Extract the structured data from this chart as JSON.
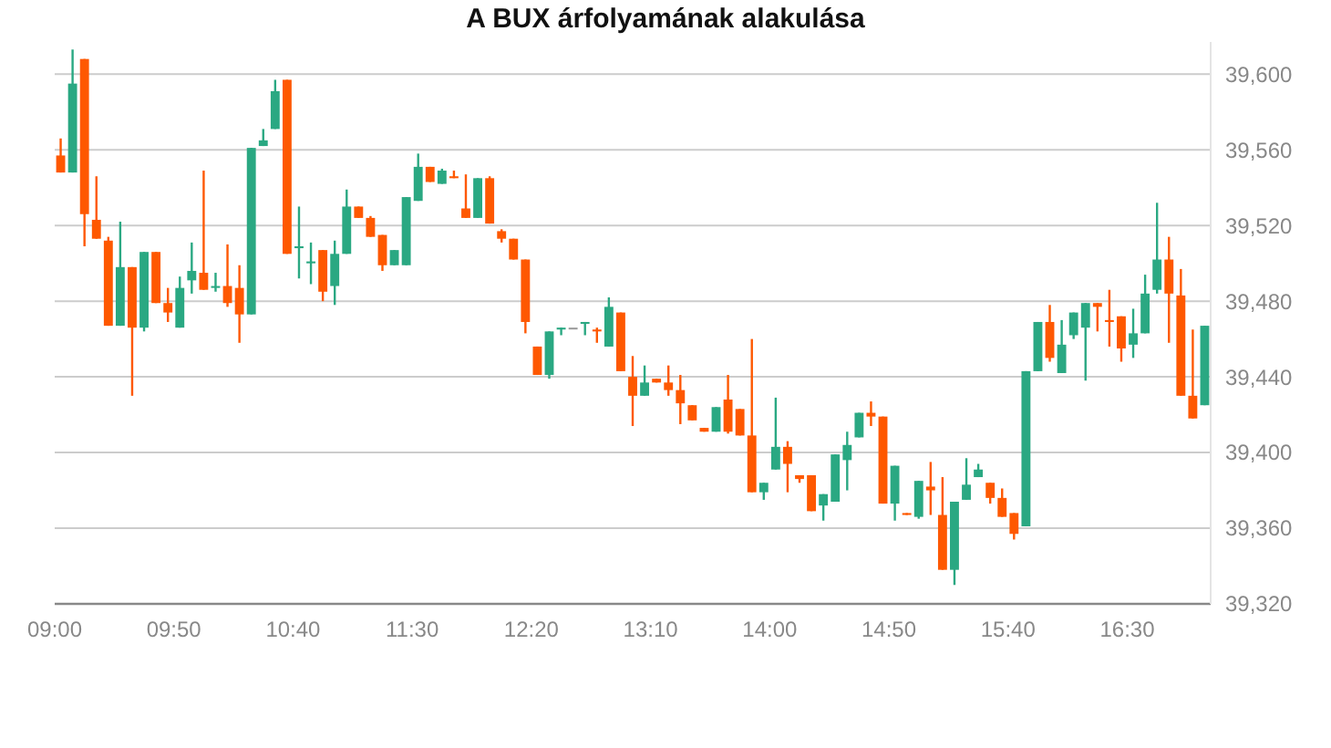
{
  "chart_data": {
    "type": "candlestick",
    "title": "A BUX árfolyamának alakulása",
    "x": [
      9.0417,
      9.125,
      9.2083,
      9.2917,
      9.375,
      9.4583,
      9.5417,
      9.625,
      9.7083,
      9.7917,
      9.875,
      9.9583,
      10.0417,
      10.125,
      10.2083,
      10.2917,
      10.375,
      10.4583,
      10.5417,
      10.625,
      10.7083,
      10.7917,
      10.875,
      10.9583,
      11.0417,
      11.125,
      11.2083,
      11.2917,
      11.375,
      11.4583,
      11.5417,
      11.625,
      11.7083,
      11.7917,
      11.875,
      11.9583,
      12.0417,
      12.125,
      12.2083,
      12.2917,
      12.375,
      12.4583,
      12.5417,
      12.625,
      12.7083,
      12.7917,
      12.875,
      12.9583,
      13.0417,
      13.125,
      13.2083,
      13.2917,
      13.375,
      13.4583,
      13.5417,
      13.625,
      13.7083,
      13.7917,
      13.875,
      13.9583,
      14.0417,
      14.125,
      14.2083,
      14.2917,
      14.375,
      14.4583,
      14.5417,
      14.625,
      14.7083,
      14.7917,
      14.875,
      14.9583,
      15.0417,
      15.125,
      15.2083,
      15.2917,
      15.375,
      15.4583,
      15.5417,
      15.625,
      15.7083,
      15.7917,
      15.875,
      15.9583,
      16.0417,
      16.125,
      16.2083,
      16.2917,
      16.375,
      16.4583,
      16.5417,
      16.625,
      16.7083,
      16.7917,
      16.875,
      16.9583,
      17.0417
    ],
    "ohlc": [
      [
        39557,
        39566,
        39548,
        39548
      ],
      [
        39548,
        39613,
        39548,
        39595
      ],
      [
        39608,
        39608,
        39509,
        39526
      ],
      [
        39523,
        39546,
        39513,
        39513
      ],
      [
        39512,
        39514,
        39467,
        39467
      ],
      [
        39467,
        39522,
        39467,
        39498
      ],
      [
        39498,
        39498,
        39430,
        39466
      ],
      [
        39466,
        39506,
        39464,
        39506
      ],
      [
        39506,
        39506,
        39479,
        39479
      ],
      [
        39479,
        39487,
        39469,
        39474
      ],
      [
        39466,
        39493,
        39466,
        39487
      ],
      [
        39491,
        39511,
        39484,
        39496
      ],
      [
        39495,
        39549,
        39486,
        39486
      ],
      [
        39487,
        39495,
        39485,
        39488
      ],
      [
        39488,
        39510,
        39477,
        39479
      ],
      [
        39487,
        39499,
        39458,
        39473
      ],
      [
        39473,
        39561,
        39473,
        39561
      ],
      [
        39562,
        39571,
        39562,
        39565
      ],
      [
        39571,
        39597,
        39571,
        39591
      ],
      [
        39597,
        39597,
        39505,
        39505
      ],
      [
        39508,
        39530,
        39492,
        39509
      ],
      [
        39500,
        39511,
        39489,
        39501
      ],
      [
        39507,
        39507,
        39480,
        39485
      ],
      [
        39488,
        39512,
        39478,
        39505
      ],
      [
        39505,
        39539,
        39505,
        39530
      ],
      [
        39530,
        39530,
        39524,
        39524
      ],
      [
        39524,
        39525,
        39514,
        39514
      ],
      [
        39515,
        39515,
        39496,
        39499
      ],
      [
        39499,
        39507,
        39499,
        39507
      ],
      [
        39499,
        39535,
        39499,
        39535
      ],
      [
        39533,
        39558,
        39533,
        39551
      ],
      [
        39551,
        39551,
        39543,
        39543
      ],
      [
        39542,
        39550,
        39542,
        39549
      ],
      [
        39546,
        39549,
        39545,
        39545
      ],
      [
        39529,
        39547,
        39524,
        39524
      ],
      [
        39524,
        39545,
        39524,
        39545
      ],
      [
        39545,
        39546,
        39521,
        39521
      ],
      [
        39517,
        39518,
        39511,
        39513
      ],
      [
        39513,
        39513,
        39502,
        39502
      ],
      [
        39502,
        39502,
        39463,
        39469
      ],
      [
        39456,
        39456,
        39441,
        39441
      ],
      [
        39441,
        39464,
        39439,
        39464
      ],
      [
        39465,
        39466,
        39462,
        39466
      ],
      [
        39466,
        39466,
        39466,
        39466
      ],
      [
        39468,
        39469,
        39462,
        39469
      ],
      [
        39465,
        39466,
        39458,
        39464
      ],
      [
        39456,
        39482,
        39456,
        39477
      ],
      [
        39474,
        39474,
        39443,
        39443
      ],
      [
        39440,
        39451,
        39414,
        39430
      ],
      [
        39430,
        39446,
        39430,
        39437
      ],
      [
        39439,
        39439,
        39437,
        39437
      ],
      [
        39437,
        39446,
        39430,
        39433
      ],
      [
        39433,
        39441,
        39415,
        39426
      ],
      [
        39425,
        39425,
        39417,
        39417
      ],
      [
        39413,
        39413,
        39411,
        39411
      ],
      [
        39411,
        39424,
        39411,
        39424
      ],
      [
        39428,
        39441,
        39410,
        39411
      ],
      [
        39423,
        39423,
        39409,
        39409
      ],
      [
        39409,
        39460,
        39379,
        39379
      ],
      [
        39379,
        39384,
        39375,
        39384
      ],
      [
        39391,
        39429,
        39391,
        39403
      ],
      [
        39403,
        39406,
        39379,
        39394
      ],
      [
        39388,
        39388,
        39384,
        39386
      ],
      [
        39388,
        39388,
        39369,
        39369
      ],
      [
        39372,
        39378,
        39364,
        39378
      ],
      [
        39374,
        39399,
        39374,
        39399
      ],
      [
        39396,
        39411,
        39380,
        39404
      ],
      [
        39408,
        39421,
        39408,
        39421
      ],
      [
        39421,
        39427,
        39414,
        39419
      ],
      [
        39419,
        39419,
        39373,
        39373
      ],
      [
        39373,
        39393,
        39364,
        39393
      ],
      [
        39368,
        39368,
        39367,
        39367
      ],
      [
        39366,
        39385,
        39365,
        39385
      ],
      [
        39382,
        39395,
        39367,
        39380
      ],
      [
        39367,
        39387,
        39338,
        39338
      ],
      [
        39338,
        39374,
        39330,
        39374
      ],
      [
        39375,
        39397,
        39375,
        39383
      ],
      [
        39387,
        39394,
        39387,
        39391
      ],
      [
        39384,
        39384,
        39373,
        39376
      ],
      [
        39376,
        39381,
        39366,
        39366
      ],
      [
        39368,
        39368,
        39354,
        39357
      ],
      [
        39361,
        39443,
        39361,
        39443
      ],
      [
        39443,
        39469,
        39443,
        39469
      ],
      [
        39469,
        39478,
        39448,
        39450
      ],
      [
        39442,
        39470,
        39442,
        39457
      ],
      [
        39462,
        39474,
        39460,
        39474
      ],
      [
        39466,
        39479,
        39438,
        39479
      ],
      [
        39479,
        39479,
        39464,
        39477
      ],
      [
        39470,
        39486,
        39456,
        39469
      ],
      [
        39472,
        39472,
        39448,
        39455
      ],
      [
        39457,
        39476,
        39450,
        39463
      ],
      [
        39463,
        39494,
        39463,
        39484
      ],
      [
        39486,
        39532,
        39484,
        39502
      ],
      [
        39502,
        39514,
        39458,
        39484
      ],
      [
        39483,
        39497,
        39430,
        39430
      ],
      [
        39430,
        39465,
        39418,
        39418
      ],
      [
        39425,
        39467,
        39425,
        39467
      ]
    ],
    "colors": [
      "#fe5800",
      "#2aa882",
      "#fe5800",
      "#fe5800",
      "#fe5800",
      "#2aa882",
      "#fe5800",
      "#2aa882",
      "#fe5800",
      "#fe5800",
      "#2aa882",
      "#2aa882",
      "#fe5800",
      "#2aa882",
      "#fe5800",
      "#fe5800",
      "#2aa882",
      "#2aa882",
      "#2aa882",
      "#fe5800",
      "#2aa882",
      "#2aa882",
      "#fe5800",
      "#2aa882",
      "#2aa882",
      "#fe5800",
      "#fe5800",
      "#fe5800",
      "#2aa882",
      "#2aa882",
      "#2aa882",
      "#fe5800",
      "#2aa882",
      "#fe5800",
      "#fe5800",
      "#2aa882",
      "#fe5800",
      "#fe5800",
      "#fe5800",
      "#fe5800",
      "#fe5800",
      "#2aa882",
      "#2aa882",
      "#999999",
      "#2aa882",
      "#fe5800",
      "#2aa882",
      "#fe5800",
      "#fe5800",
      "#2aa882",
      "#fe5800",
      "#fe5800",
      "#fe5800",
      "#fe5800",
      "#fe5800",
      "#2aa882",
      "#fe5800",
      "#fe5800",
      "#fe5800",
      "#2aa882",
      "#2aa882",
      "#fe5800",
      "#fe5800",
      "#fe5800",
      "#2aa882",
      "#2aa882",
      "#2aa882",
      "#2aa882",
      "#fe5800",
      "#fe5800",
      "#2aa882",
      "#fe5800",
      "#2aa882",
      "#fe5800",
      "#fe5800",
      "#2aa882",
      "#2aa882",
      "#2aa882",
      "#fe5800",
      "#fe5800",
      "#fe5800",
      "#2aa882",
      "#2aa882",
      "#fe5800",
      "#2aa882",
      "#2aa882",
      "#2aa882",
      "#fe5800",
      "#fe5800",
      "#fe5800",
      "#2aa882",
      "#2aa882",
      "#2aa882",
      "#fe5800",
      "#fe5800",
      "#fe5800",
      "#2aa882"
    ],
    "xlim": [
      9,
      17.0833
    ],
    "xticks": [
      {
        "value": 9,
        "label": "09:00"
      },
      {
        "value": 9.8333,
        "label": "09:50"
      },
      {
        "value": 10.6667,
        "label": "10:40"
      },
      {
        "value": 11.5,
        "label": "11:30"
      },
      {
        "value": 12.3333,
        "label": "12:20"
      },
      {
        "value": 13.1667,
        "label": "13:10"
      },
      {
        "value": 14,
        "label": "14:00"
      },
      {
        "value": 14.8333,
        "label": "14:50"
      },
      {
        "value": 15.6667,
        "label": "15:40"
      },
      {
        "value": 16.5,
        "label": "16:30"
      }
    ],
    "ylim": [
      39320,
      39617
    ],
    "yticks": [
      {
        "value": 39320,
        "label": "39,320"
      },
      {
        "value": 39360,
        "label": "39,360"
      },
      {
        "value": 39400,
        "label": "39,400"
      },
      {
        "value": 39440,
        "label": "39,440"
      },
      {
        "value": 39480,
        "label": "39,480"
      },
      {
        "value": 39520,
        "label": "39,520"
      },
      {
        "value": 39560,
        "label": "39,560"
      },
      {
        "value": 39600,
        "label": "39,600"
      }
    ],
    "grid": "y"
  }
}
